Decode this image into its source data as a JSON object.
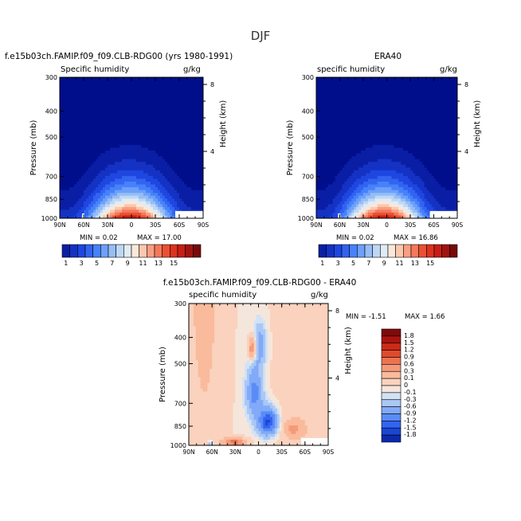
{
  "page_title": "DJF",
  "colors": {
    "seq": [
      "#000e8c",
      "#0a1ea5",
      "#1432c3",
      "#1e46e1",
      "#3264f0",
      "#4682fa",
      "#6ea0fa",
      "#96bef5",
      "#bed7f5",
      "#e1ebf5",
      "#fae8d8",
      "#fac8af",
      "#fa9e82",
      "#f5785a",
      "#eb5032",
      "#dc321e",
      "#c81e14",
      "#a01410",
      "#780a0a"
    ],
    "div": [
      "#000e8c",
      "#0a2aad",
      "#1a46d2",
      "#3264f0",
      "#5a8cf8",
      "#82aaf8",
      "#aac8f5",
      "#d2e2f5",
      "#f5e6dc",
      "#fad2be",
      "#faba9c",
      "#f59a78",
      "#eb7450",
      "#e04a2c",
      "#cc2a18",
      "#aa1410",
      "#800a0a"
    ]
  },
  "chart_data": [
    {
      "type": "heatmap",
      "title": "f.e15b03ch.FAMIP.f09_f09.CLB-RDG00 (yrs 1980-1991)",
      "subtitle": "Specific humidity",
      "units": "g/kg",
      "xlabel": "",
      "ylabel": "Pressure (mb)",
      "y2label": "Height (km)",
      "x_ticks": [
        "90N",
        "60N",
        "30N",
        "0",
        "30S",
        "60S",
        "90S"
      ],
      "y_ticks": [
        "300",
        "400",
        "500",
        "700",
        "850",
        "1000"
      ],
      "y_tick_values": [
        300,
        400,
        500,
        700,
        850,
        1000
      ],
      "y2_ticks": [
        "8",
        "4"
      ],
      "y2_tick_values": [
        8,
        4
      ],
      "ylim": [
        1000,
        300
      ],
      "xlim": [
        90,
        -90
      ],
      "min_label": "MIN =    0.02",
      "max_label": "MAX =   17.00",
      "min": 0.02,
      "max": 17.0,
      "colorbar_ticks": [
        "1",
        "3",
        "5",
        "7",
        "9",
        "11",
        "13",
        "15"
      ],
      "colorbar_levels": [
        1,
        2,
        3,
        4,
        5,
        6,
        7,
        8,
        9,
        10,
        11,
        12,
        13,
        14,
        15,
        16,
        17
      ]
    },
    {
      "type": "heatmap",
      "title": "ERA40",
      "subtitle": "specific humidity",
      "units": "g/kg",
      "xlabel": "",
      "ylabel": "Pressure (mb)",
      "y2label": "Height (km)",
      "x_ticks": [
        "90N",
        "60N",
        "30N",
        "0",
        "30S",
        "60S",
        "90S"
      ],
      "y_ticks": [
        "300",
        "400",
        "500",
        "700",
        "850",
        "1000"
      ],
      "y_tick_values": [
        300,
        400,
        500,
        700,
        850,
        1000
      ],
      "y2_ticks": [
        "8",
        "4"
      ],
      "y2_tick_values": [
        8,
        4
      ],
      "ylim": [
        1000,
        300
      ],
      "xlim": [
        90,
        -90
      ],
      "min_label": "MIN =    0.02",
      "max_label": "MAX =   16.86",
      "min": 0.02,
      "max": 16.86,
      "colorbar_ticks": [
        "1",
        "3",
        "5",
        "7",
        "9",
        "11",
        "13",
        "15"
      ],
      "colorbar_levels": [
        1,
        2,
        3,
        4,
        5,
        6,
        7,
        8,
        9,
        10,
        11,
        12,
        13,
        14,
        15,
        16,
        17
      ]
    },
    {
      "type": "heatmap",
      "title": "f.e15b03ch.FAMIP.f09_f09.CLB-RDG00 - ERA40",
      "subtitle": "specific humidity",
      "units": "g/kg",
      "xlabel": "",
      "ylabel": "Pressure (mb)",
      "y2label": "Height (km)",
      "x_ticks": [
        "90N",
        "60N",
        "30N",
        "0",
        "30S",
        "60S",
        "90S"
      ],
      "y_ticks": [
        "300",
        "400",
        "500",
        "700",
        "850",
        "1000"
      ],
      "y_tick_values": [
        300,
        400,
        500,
        700,
        850,
        1000
      ],
      "y2_ticks": [
        "8",
        "4"
      ],
      "y2_tick_values": [
        8,
        4
      ],
      "ylim": [
        1000,
        300
      ],
      "xlim": [
        90,
        -90
      ],
      "min_label": "MIN =   -1.51",
      "max_label": "MAX =    1.66",
      "min": -1.51,
      "max": 1.66,
      "colorbar_ticks": [
        "1.8",
        "1.5",
        "1.2",
        "0.9",
        "0.6",
        "0.3",
        "0.1",
        "0",
        "-0.1",
        "-0.3",
        "-0.6",
        "-0.9",
        "-1.2",
        "-1.5",
        "-1.8"
      ],
      "colorbar_levels": [
        -1.8,
        -1.5,
        -1.2,
        -0.9,
        -0.6,
        -0.3,
        -0.1,
        0,
        0.1,
        0.3,
        0.6,
        0.9,
        1.2,
        1.5,
        1.8
      ]
    }
  ]
}
